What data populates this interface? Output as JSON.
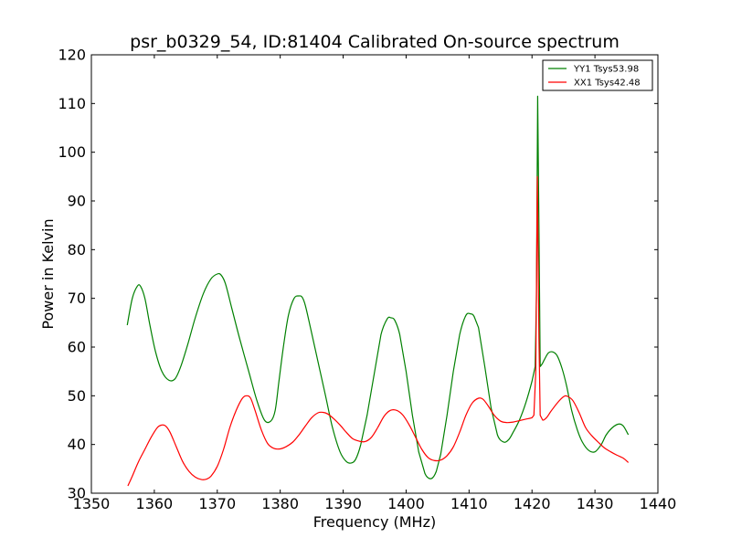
{
  "chart_data": {
    "type": "line",
    "title": "psr_b0329_54, ID:81404 Calibrated On-source spectrum",
    "xlabel": "Frequency (MHz)",
    "ylabel": "Power in Kelvin",
    "xlim": [
      1350,
      1440
    ],
    "ylim": [
      30,
      120
    ],
    "xticks": [
      1350,
      1360,
      1370,
      1380,
      1390,
      1400,
      1410,
      1420,
      1430,
      1440
    ],
    "yticks": [
      30,
      40,
      50,
      60,
      70,
      80,
      90,
      100,
      110,
      120
    ],
    "grid": false,
    "legend_position": "top-right",
    "series": [
      {
        "name": "YY1 Tsys53.98",
        "color": "#008000",
        "x": [
          1355.7,
          1356.5,
          1357.3,
          1357.8,
          1358.5,
          1359.3,
          1360.2,
          1361.2,
          1362.3,
          1363.3,
          1364.2,
          1365.3,
          1366.5,
          1367.8,
          1369.0,
          1370.0,
          1370.6,
          1371.3,
          1372.3,
          1373.5,
          1375.0,
          1376.3,
          1377.5,
          1378.5,
          1379.2,
          1379.8,
          1380.5,
          1381.3,
          1382.2,
          1383.0,
          1383.5,
          1384.0,
          1384.8,
          1386.0,
          1387.2,
          1388.3,
          1389.5,
          1390.5,
          1391.3,
          1392.0,
          1392.8,
          1393.8,
          1395.0,
          1396.0,
          1397.0,
          1397.6,
          1398.2,
          1399.0,
          1400.0,
          1401.0,
          1402.0,
          1403.0,
          1404.0,
          1404.8,
          1405.5,
          1406.5,
          1407.5,
          1408.5,
          1409.5,
          1410.3,
          1410.8,
          1411.5,
          1412.5,
          1413.5,
          1414.5,
          1415.5,
          1416.3,
          1417.0,
          1418.0,
          1419.0,
          1420.0,
          1420.5,
          1420.7,
          1420.9,
          1421.1,
          1421.3,
          1421.6,
          1422.0,
          1422.6,
          1423.3,
          1424.0,
          1424.8,
          1425.5,
          1426.3,
          1427.2,
          1428.0,
          1429.0,
          1430.0,
          1431.0,
          1431.8,
          1432.8,
          1433.8,
          1434.5,
          1435.3
        ],
        "y": [
          64.5,
          70.0,
          72.5,
          72.5,
          70.0,
          64.5,
          59.0,
          55.0,
          53.2,
          53.5,
          56.0,
          60.5,
          66.0,
          71.0,
          74.0,
          75.0,
          74.8,
          73.0,
          68.0,
          62.0,
          55.0,
          49.0,
          45.0,
          44.8,
          47.0,
          53.0,
          60.0,
          66.5,
          70.0,
          70.5,
          70.2,
          68.5,
          64.0,
          57.0,
          50.0,
          43.5,
          38.5,
          36.5,
          36.2,
          37.0,
          40.0,
          46.0,
          55.0,
          62.5,
          65.8,
          66.0,
          65.5,
          62.5,
          55.0,
          46.0,
          38.5,
          34.0,
          33.0,
          34.5,
          38.0,
          46.0,
          55.0,
          62.5,
          66.5,
          66.8,
          66.3,
          64.0,
          56.0,
          47.5,
          42.0,
          40.5,
          41.0,
          42.5,
          45.0,
          48.5,
          53.0,
          56.0,
          70.0,
          111.5,
          85.0,
          56.0,
          56.5,
          57.5,
          58.8,
          59.0,
          58.2,
          55.5,
          52.0,
          47.0,
          43.0,
          40.5,
          38.8,
          38.5,
          40.0,
          42.0,
          43.5,
          44.2,
          43.8,
          42.0
        ]
      },
      {
        "name": "XX1 Tsys42.48",
        "color": "#ff0000",
        "x": [
          1355.8,
          1356.5,
          1357.5,
          1358.5,
          1359.5,
          1360.5,
          1361.2,
          1361.8,
          1362.5,
          1363.5,
          1364.5,
          1365.5,
          1366.5,
          1367.5,
          1368.3,
          1369.0,
          1370.0,
          1371.0,
          1372.0,
          1373.0,
          1374.0,
          1374.7,
          1375.3,
          1376.0,
          1377.0,
          1378.0,
          1379.0,
          1380.0,
          1381.0,
          1382.0,
          1383.0,
          1384.0,
          1385.0,
          1386.0,
          1386.8,
          1387.5,
          1388.5,
          1389.5,
          1390.5,
          1391.5,
          1392.5,
          1393.5,
          1394.5,
          1395.5,
          1396.5,
          1397.5,
          1398.5,
          1399.5,
          1400.5,
          1401.5,
          1402.5,
          1403.5,
          1404.5,
          1405.5,
          1406.5,
          1407.5,
          1408.5,
          1409.5,
          1410.5,
          1411.5,
          1412.2,
          1413.0,
          1414.0,
          1415.0,
          1416.0,
          1417.0,
          1418.0,
          1419.0,
          1420.0,
          1420.3,
          1420.6,
          1420.85,
          1421.1,
          1421.3,
          1421.7,
          1422.3,
          1423.0,
          1424.0,
          1425.0,
          1425.6,
          1426.5,
          1427.5,
          1428.5,
          1429.5,
          1430.5,
          1431.5,
          1432.5,
          1433.5,
          1434.5,
          1435.3
        ],
        "y": [
          31.5,
          33.5,
          36.5,
          39.0,
          41.5,
          43.5,
          44.0,
          43.8,
          42.5,
          39.5,
          36.5,
          34.5,
          33.3,
          32.8,
          32.9,
          33.5,
          35.5,
          39.0,
          43.5,
          47.0,
          49.5,
          50.0,
          49.5,
          47.0,
          43.0,
          40.2,
          39.2,
          39.1,
          39.6,
          40.5,
          42.0,
          43.8,
          45.5,
          46.5,
          46.6,
          46.3,
          45.3,
          44.0,
          42.5,
          41.2,
          40.7,
          40.6,
          41.5,
          43.5,
          45.8,
          47.0,
          47.0,
          46.0,
          44.0,
          41.5,
          39.0,
          37.3,
          36.7,
          36.8,
          37.7,
          39.5,
          42.5,
          46.0,
          48.5,
          49.5,
          49.3,
          48.0,
          46.0,
          44.8,
          44.5,
          44.6,
          44.9,
          45.2,
          45.5,
          46.0,
          55.0,
          95.0,
          62.0,
          46.0,
          45.0,
          45.5,
          46.8,
          48.5,
          49.8,
          49.9,
          49.0,
          46.5,
          43.5,
          41.8,
          40.5,
          39.3,
          38.5,
          37.8,
          37.2,
          36.3
        ]
      }
    ]
  }
}
